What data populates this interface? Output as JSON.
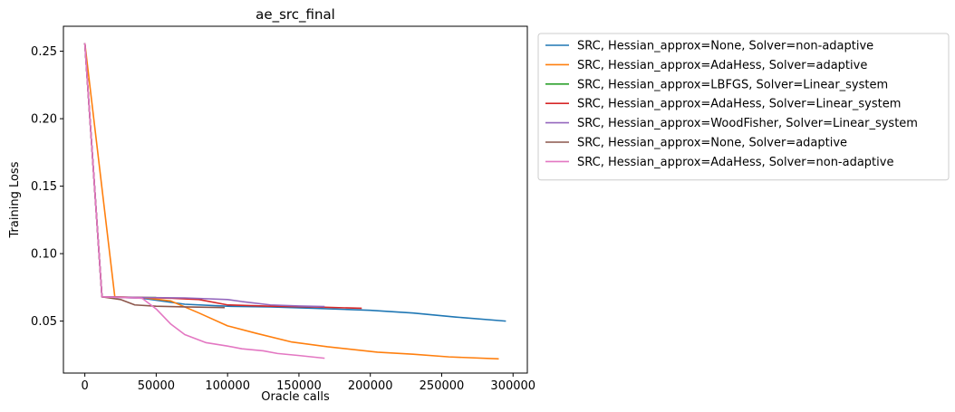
{
  "chart_data": {
    "type": "line",
    "title": "ae_src_final",
    "xlabel": "Oracle calls",
    "ylabel": "Training Loss",
    "xlim": [
      -15000,
      310000
    ],
    "ylim": [
      0.0115,
      0.2685
    ],
    "xticks": [
      0,
      50000,
      100000,
      150000,
      200000,
      250000,
      300000
    ],
    "xtick_labels": [
      "0",
      "50000",
      "100000",
      "150000",
      "200000",
      "250000",
      "300000"
    ],
    "yticks": [
      0.05,
      0.1,
      0.15,
      0.2,
      0.25
    ],
    "ytick_labels": [
      "0.05",
      "0.10",
      "0.15",
      "0.20",
      "0.25"
    ],
    "grid": false,
    "legend_placement": "outside-right-top",
    "series": [
      {
        "name": "SRC, Hessian_approx=None, Solver=non-adaptive",
        "color": "#1f77b4",
        "x": [
          0,
          12000,
          40000,
          70000,
          100000,
          130000,
          160000,
          200000,
          230000,
          260000,
          295000
        ],
        "y": [
          0.256,
          0.068,
          0.067,
          0.0625,
          0.061,
          0.0605,
          0.0595,
          0.058,
          0.056,
          0.053,
          0.05
        ]
      },
      {
        "name": "SRC, Hessian_approx=AdaHess, Solver=adaptive",
        "color": "#ff7f0e",
        "x": [
          0,
          21000,
          40000,
          60000,
          80000,
          100000,
          120000,
          145000,
          170000,
          205000,
          230000,
          255000,
          290000
        ],
        "y": [
          0.256,
          0.068,
          0.0675,
          0.065,
          0.056,
          0.0465,
          0.041,
          0.0345,
          0.031,
          0.027,
          0.0255,
          0.0235,
          0.022
        ]
      },
      {
        "name": "SRC, Hessian_approx=LBFGS, Solver=Linear_system",
        "color": "#2ca02c",
        "x": [
          0,
          12000,
          30000,
          50000
        ],
        "y": [
          0.256,
          0.068,
          0.0675,
          0.0675
        ]
      },
      {
        "name": "SRC, Hessian_approx=AdaHess, Solver=Linear_system",
        "color": "#d62728",
        "x": [
          0,
          12000,
          40000,
          60000,
          80000,
          100000,
          130000,
          160000,
          194000
        ],
        "y": [
          0.256,
          0.068,
          0.0675,
          0.067,
          0.066,
          0.062,
          0.061,
          0.0605,
          0.0595
        ]
      },
      {
        "name": "SRC, Hessian_approx=WoodFisher, Solver=Linear_system",
        "color": "#9467bd",
        "x": [
          0,
          12000,
          40000,
          70000,
          100000,
          110000,
          130000,
          150000,
          168000
        ],
        "y": [
          0.256,
          0.068,
          0.0675,
          0.0672,
          0.066,
          0.0645,
          0.062,
          0.0612,
          0.0608
        ]
      },
      {
        "name": "SRC, Hessian_approx=None, Solver=adaptive",
        "color": "#8c564b",
        "x": [
          0,
          12000,
          25000,
          35000,
          50000,
          70000,
          98000
        ],
        "y": [
          0.256,
          0.068,
          0.066,
          0.062,
          0.061,
          0.0605,
          0.06
        ]
      },
      {
        "name": "SRC, Hessian_approx=AdaHess, Solver=non-adaptive",
        "color": "#e377c2",
        "x": [
          0,
          12000,
          40000,
          50000,
          60000,
          70000,
          85000,
          100000,
          110000,
          125000,
          135000,
          150000,
          168000
        ],
        "y": [
          0.256,
          0.068,
          0.067,
          0.059,
          0.048,
          0.04,
          0.034,
          0.0315,
          0.0295,
          0.028,
          0.026,
          0.0245,
          0.0225
        ]
      }
    ]
  }
}
